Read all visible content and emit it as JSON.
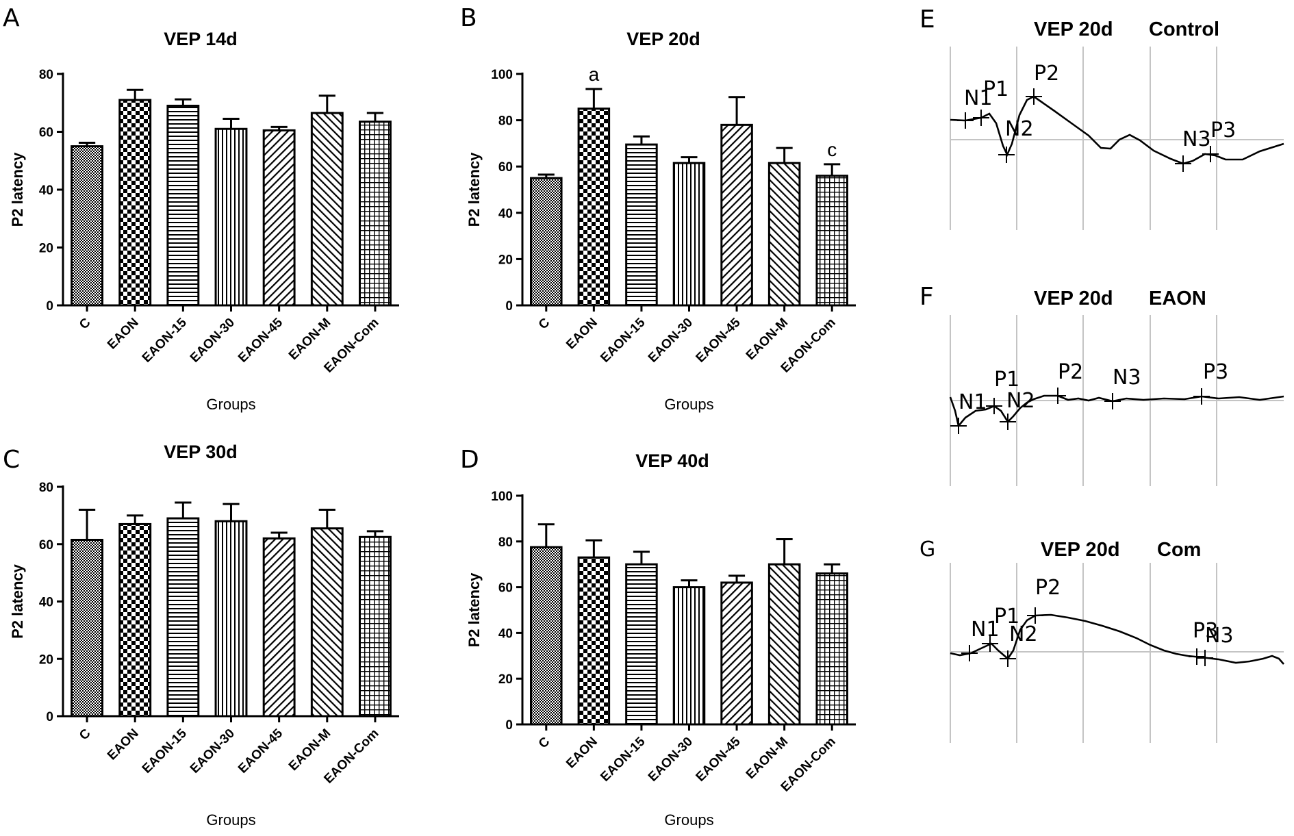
{
  "chart_data": [
    {
      "panel": "A",
      "type": "bar",
      "title": "VEP 14d",
      "xlabel": "Groups",
      "ylabel": "P2 latency",
      "ylim": [
        0,
        80
      ],
      "yticks": [
        0,
        20,
        40,
        60,
        80
      ],
      "categories": [
        "C",
        "EAON",
        "EAON-15",
        "EAON-30",
        "EAON-45",
        "EAON-M",
        "EAON-Com"
      ],
      "values": [
        55,
        71,
        69,
        61,
        60.5,
        66.5,
        63.5
      ],
      "errors": [
        1.2,
        3.5,
        2.2,
        3.5,
        1.2,
        6,
        3
      ],
      "annotations": []
    },
    {
      "panel": "B",
      "type": "bar",
      "title": "VEP 20d",
      "xlabel": "Groups",
      "ylabel": "P2 latency",
      "ylim": [
        0,
        100
      ],
      "yticks": [
        0,
        20,
        40,
        60,
        80,
        100
      ],
      "categories": [
        "C",
        "EAON",
        "EAON-15",
        "EAON-30",
        "EAON-45",
        "EAON-M",
        "EAON-Com"
      ],
      "values": [
        55,
        85,
        69.5,
        61.5,
        78,
        61.5,
        56
      ],
      "errors": [
        1.5,
        8.5,
        3.5,
        2.5,
        12,
        6.5,
        5
      ],
      "annotations": [
        "",
        "a",
        "",
        "",
        "",
        "",
        "c"
      ]
    },
    {
      "panel": "C",
      "type": "bar",
      "title": "VEP 30d",
      "xlabel": "Groups",
      "ylabel": "P2 latency",
      "ylim": [
        0,
        80
      ],
      "yticks": [
        0,
        20,
        40,
        60,
        80
      ],
      "categories": [
        "C",
        "EAON",
        "EAON-15",
        "EAON-30",
        "EAON-45",
        "EAON-M",
        "EAON-Com"
      ],
      "values": [
        61.5,
        67,
        69,
        68,
        62,
        65.5,
        62.5
      ],
      "errors": [
        10.5,
        3,
        5.5,
        6,
        2,
        6.5,
        2
      ],
      "annotations": []
    },
    {
      "panel": "D",
      "type": "bar",
      "title": "VEP 40d",
      "xlabel": "Groups",
      "ylabel": "P2 latency",
      "ylim": [
        0,
        100
      ],
      "yticks": [
        0,
        20,
        40,
        60,
        80,
        100
      ],
      "categories": [
        "C",
        "EAON",
        "EAON-15",
        "EAON-30",
        "EAON-45",
        "EAON-M",
        "EAON-Com"
      ],
      "values": [
        77.5,
        73,
        70,
        60,
        62,
        70,
        66
      ],
      "errors": [
        10,
        7.5,
        5.5,
        3,
        3,
        11,
        4
      ],
      "annotations": []
    }
  ],
  "waveforms": [
    {
      "panel": "E",
      "title": "VEP 20d",
      "group": "Control",
      "peaks": [
        "N1",
        "P1",
        "N2",
        "P2",
        "N3",
        "P3"
      ]
    },
    {
      "panel": "F",
      "title": "VEP 20d",
      "group": "EAON",
      "peaks": [
        "N1",
        "P1",
        "N2",
        "P2",
        "N3",
        "P3"
      ]
    },
    {
      "panel": "G",
      "title": "VEP 20d",
      "group": "Com",
      "peaks": [
        "N1",
        "P1",
        "N2",
        "P2",
        "P3",
        "N3"
      ]
    }
  ]
}
